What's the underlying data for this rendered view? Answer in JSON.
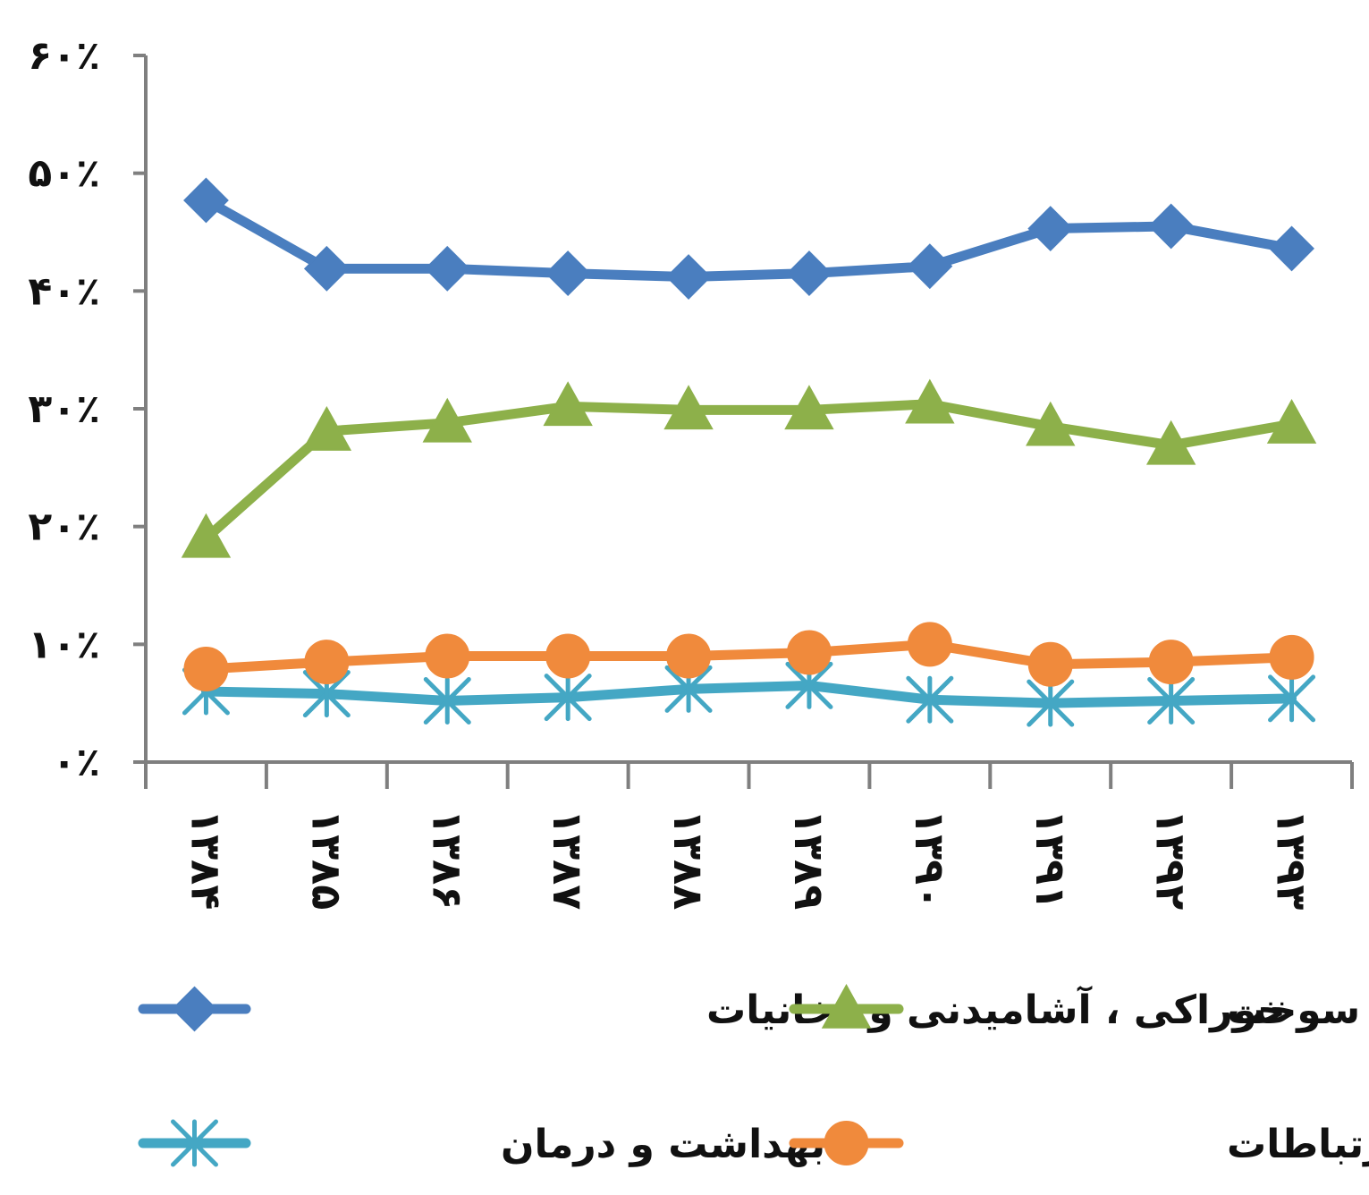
{
  "chart_data": {
    "type": "line",
    "title": "",
    "xlabel": "",
    "ylabel": "",
    "categories": [
      "۱۳۸۴",
      "۱۳۸۵",
      "۱۳۸۶",
      "۱۳۸۷",
      "۱۳۸۸",
      "۱۳۸۹",
      "۱۳۹۰",
      "۱۳۹۱",
      "۱۳۹۲",
      "۱۳۹۳"
    ],
    "ylim": [
      0,
      60
    ],
    "yticks": [
      0,
      10,
      20,
      30,
      40,
      50,
      60
    ],
    "ytick_labels": [
      "۰٪",
      "۱۰٪",
      "۲۰٪",
      "۳۰٪",
      "۴۰٪",
      "۵۰٪",
      "۶۰٪"
    ],
    "grid": false,
    "legend_position": "bottom",
    "series": [
      {
        "name": "خوراکی ، آشامیدنی و دخانیات",
        "color": "#4a7ebf",
        "marker": "diamond",
        "values": [
          47.7,
          41.9,
          41.9,
          41.5,
          41.2,
          41.5,
          42.1,
          45.3,
          45.5,
          43.6
        ]
      },
      {
        "name": "مسکن، آب و سوخت",
        "color": "#8db04a",
        "marker": "triangle",
        "values": [
          19.0,
          28.1,
          28.8,
          30.2,
          29.9,
          29.9,
          30.4,
          28.5,
          26.9,
          28.7
        ]
      },
      {
        "name": "حمل و نقل و ارتباطات",
        "color": "#f08a3c",
        "marker": "circle",
        "values": [
          7.9,
          8.5,
          9.0,
          9.0,
          9.0,
          9.3,
          10.0,
          8.3,
          8.5,
          8.9
        ]
      },
      {
        "name": "بهداشت و درمان",
        "color": "#44a7c4",
        "marker": "star",
        "values": [
          6.0,
          5.8,
          5.2,
          5.5,
          6.2,
          6.5,
          5.3,
          5.0,
          5.2,
          5.4
        ]
      }
    ]
  }
}
